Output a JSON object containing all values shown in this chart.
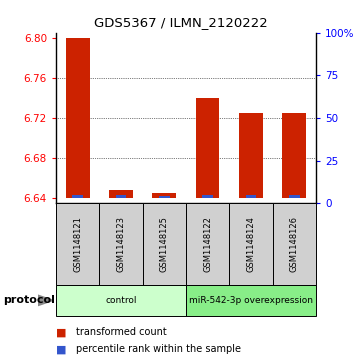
{
  "title": "GDS5367 / ILMN_2120222",
  "samples": [
    "GSM1148121",
    "GSM1148123",
    "GSM1148125",
    "GSM1148122",
    "GSM1148124",
    "GSM1148126"
  ],
  "red_values": [
    6.8,
    6.648,
    6.645,
    6.74,
    6.725,
    6.725
  ],
  "blue_values": [
    6.6435,
    6.6428,
    6.6425,
    6.6435,
    6.6428,
    6.6432
  ],
  "base": 6.64,
  "ylim_left": [
    6.635,
    6.805
  ],
  "ylim_right": [
    0,
    100
  ],
  "yticks_left": [
    6.64,
    6.68,
    6.72,
    6.76,
    6.8
  ],
  "yticks_right": [
    0,
    25,
    50,
    75,
    100
  ],
  "ytick_labels_right": [
    "0",
    "25",
    "50",
    "75",
    "100%"
  ],
  "groups": [
    {
      "label": "control",
      "start": 0,
      "end": 3,
      "color": "#ccffcc"
    },
    {
      "label": "miR-542-3p overexpression",
      "start": 3,
      "end": 6,
      "color": "#88ee88"
    }
  ],
  "protocol_label": "protocol",
  "bar_width": 0.55,
  "red_color": "#cc2200",
  "blue_color": "#3355cc",
  "bg_sample_box": "#d0d0d0",
  "legend_red_label": "transformed count",
  "legend_blue_label": "percentile rank within the sample"
}
